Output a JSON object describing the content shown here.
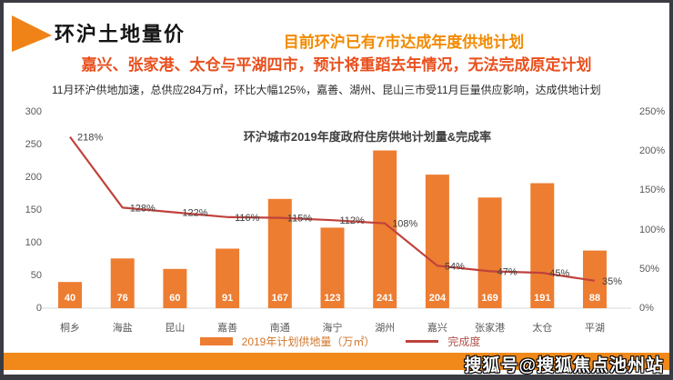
{
  "page": {
    "section_title": "环沪土地量价",
    "headline_1": "目前环沪已有7市达成年度供地计划",
    "headline_2": "嘉兴、张家港、太仓与平湖四市，预计将重蹈去年情况，无法完成原定计划",
    "body_text": "11月环沪供地加速，总供应284万㎡，环比大幅125%，嘉善、湖州、昆山三市受11月巨量供应影响，达成供地计划",
    "watermark": "搜狐号@搜狐焦点池州站"
  },
  "colors": {
    "accent_orange": "#F08318",
    "bar_orange": "#ED7D31",
    "line_red": "#C0423C",
    "headline_orange": "#F28A00",
    "headline_red": "#E94F1D",
    "axis_gray": "#595959",
    "banner_orange": "#F0891A"
  },
  "chart_data": {
    "type": "bar",
    "subtype": "bar+line-combo",
    "title": "环沪城市2019年度政府住房供地计划量&完成率",
    "categories": [
      "桐乡",
      "海盐",
      "昆山",
      "嘉善",
      "南通",
      "海宁",
      "湖州",
      "嘉兴",
      "张家港",
      "太仓",
      "平湖"
    ],
    "series": [
      {
        "name": "2019年计划供地量（万㎡）",
        "type": "bar",
        "axis": "left",
        "values": [
          40,
          76,
          60,
          91,
          167,
          123,
          241,
          204,
          169,
          191,
          88
        ]
      },
      {
        "name": "完成度",
        "type": "line",
        "axis": "right",
        "values_pct": [
          218,
          128,
          122,
          116,
          115,
          112,
          108,
          54,
          47,
          45,
          35
        ],
        "point_labels": [
          "218%",
          "128%",
          "122%",
          "116%",
          "115%",
          "112%",
          "108%",
          "54%",
          "47%",
          "45%",
          "35%"
        ]
      }
    ],
    "left_axis": {
      "min": 0,
      "max": 300,
      "ticks": [
        300,
        250,
        200,
        150,
        100,
        50,
        0
      ]
    },
    "right_axis": {
      "min": 0,
      "max": 250,
      "ticks": [
        "250%",
        "200%",
        "150%",
        "100%",
        "50%",
        "0%"
      ]
    },
    "grid": "baseline-only",
    "legend_position": "bottom"
  }
}
